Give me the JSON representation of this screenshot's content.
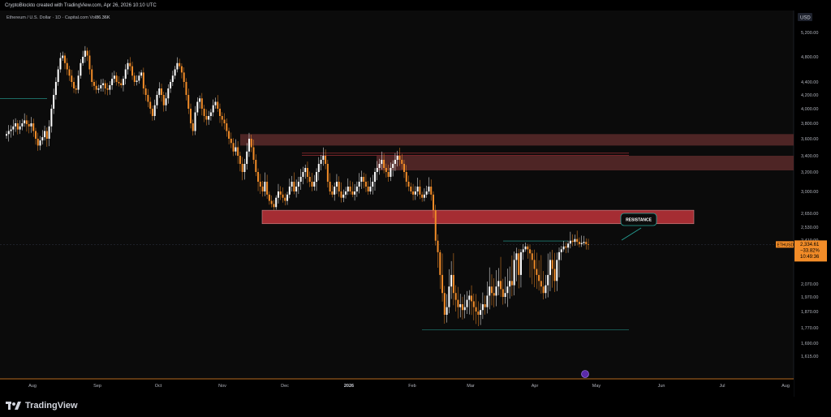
{
  "header": {
    "credit": "CryptoBlockto created with TradingView.com, Apr 26, 2026 10:10 UTC"
  },
  "legend": {
    "symbol_text": "Ethereum / U.S. Dollar · 1D · Capital.com",
    "volume_label": "Vol",
    "volume_value": "86.36K"
  },
  "footer": {
    "brand": "TradingView"
  },
  "colors": {
    "up": "#ffffff",
    "down": "#f28c28",
    "resistance_fill": "#c0333a",
    "zone_fill": "#5b2a2a",
    "price_tag": "#f28c28",
    "teal": "#26a69a",
    "red_line": "#b5333a"
  },
  "chart_data": {
    "type": "candlestick",
    "currency_label": "USD",
    "y_ticks": [
      "5,200.00",
      "4,800.00",
      "4,400.00",
      "4,200.00",
      "4,000.00",
      "3,800.00",
      "3,600.00",
      "3,400.00",
      "3,200.00",
      "3,000.00",
      "2,650.00",
      "2,530.00",
      "2,410.00",
      "2,170.00",
      "2,070.00",
      "1,970.00",
      "1,870.00",
      "1,770.00",
      "1,690.00",
      "1,615.00"
    ],
    "x_ticks": [
      "Aug",
      "Sep",
      "Oct",
      "Nov",
      "Dec",
      "2026",
      "Feb",
      "Mar",
      "Apr",
      "May",
      "Jun",
      "Jul",
      "Aug"
    ],
    "current_price": {
      "symbol": "ETHUSD",
      "price": "2,334.61",
      "change": "−33.82%",
      "countdown": "10:49:36"
    },
    "zones": [
      {
        "name": "upper-supply-zone",
        "from": 3520,
        "to": 3660
      },
      {
        "name": "middle-supply-zone",
        "from": 3220,
        "to": 3400
      },
      {
        "name": "resistance-zone",
        "from": 2560,
        "to": 2700
      }
    ],
    "annotation": {
      "label": "RESISTANCE"
    },
    "close_series": [
      3660,
      3700,
      3720,
      3760,
      3800,
      3720,
      3760,
      3800,
      3840,
      3790,
      3760,
      3800,
      3700,
      3600,
      3520,
      3580,
      3620,
      3700,
      3600,
      3760,
      4000,
      4200,
      4400,
      4600,
      4780,
      4820,
      4700,
      4600,
      4500,
      4400,
      4300,
      4280,
      4500,
      4700,
      4800,
      4900,
      4820,
      4600,
      4400,
      4340,
      4280,
      4300,
      4350,
      4380,
      4300,
      4280,
      4350,
      4450,
      4500,
      4400,
      4380,
      4350,
      4450,
      4600,
      4700,
      4650,
      4500,
      4400,
      4420,
      4500,
      4550,
      4300,
      4200,
      4100,
      4000,
      3900,
      4050,
      4200,
      4300,
      4200,
      4050,
      4150,
      4300,
      4400,
      4500,
      4600,
      4700,
      4650,
      4550,
      4400,
      4200,
      4000,
      3800,
      3700,
      3950,
      4100,
      4150,
      4000,
      3900,
      3850,
      3900,
      3950,
      4050,
      4100,
      4000,
      3900,
      3850,
      3800,
      3700,
      3600,
      3550,
      3450,
      3500,
      3400,
      3300,
      3200,
      3300,
      3450,
      3600,
      3500,
      3350,
      3200,
      3100,
      3050,
      3000,
      3100,
      2950,
      2850,
      2800,
      2750,
      2900,
      3000,
      2950,
      2900,
      2850,
      2950,
      3050,
      3100,
      3000,
      3050,
      3100,
      3150,
      3200,
      3250,
      3150,
      3100,
      3050,
      3100,
      3200,
      3300,
      3350,
      3400,
      3300,
      3100,
      3000,
      2950,
      3050,
      3100,
      3000,
      2900,
      2950,
      3000,
      3050,
      3000,
      2950,
      3000,
      3050,
      3100,
      3150,
      3100,
      3050,
      3000,
      3050,
      3100,
      3200,
      3250,
      3300,
      3350,
      3250,
      3200,
      3150,
      3250,
      3300,
      3350,
      3400,
      3350,
      3300,
      3200,
      3100,
      3050,
      3000,
      2950,
      3000,
      3050,
      2950,
      2900,
      2950,
      3000,
      3050,
      2950,
      2700,
      2400,
      2200,
      2100,
      2000,
      1850,
      1900,
      2050,
      2100,
      2000,
      1950,
      1900,
      1920,
      1880,
      1900,
      1950,
      1980,
      1940,
      1900,
      1870,
      1850,
      1880,
      1920,
      1900,
      1980,
      2050,
      2000,
      1980,
      2050,
      2080,
      2030,
      1970,
      2000,
      2050,
      2080,
      2060,
      2150,
      2180,
      2100,
      2200,
      2250,
      2300,
      2250,
      2180,
      2150,
      2120,
      2100,
      2080,
      2050,
      2000,
      2060,
      2100,
      2150,
      2120,
      2080,
      2150,
      2200,
      2250,
      2300,
      2280,
      2350,
      2400,
      2380,
      2420,
      2380,
      2340,
      2360,
      2380,
      2340,
      2330
    ]
  }
}
